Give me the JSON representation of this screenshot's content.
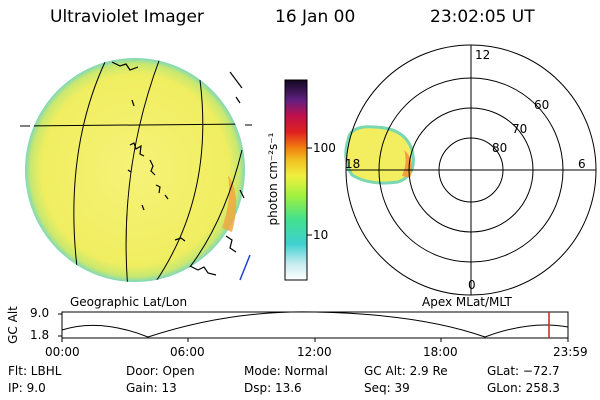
{
  "header": {
    "instrument": "Ultraviolet Imager",
    "date": "16 Jan 00",
    "time": "23:02:05 UT"
  },
  "colorbar": {
    "unit_label": "photon cm⁻²s⁻¹",
    "ticks": [
      "100",
      "10"
    ]
  },
  "geo_panel": {
    "caption": "Geographic Lat/Lon"
  },
  "polar_panel": {
    "caption": "Apex MLat/MLT",
    "mlt_labels": [
      "12",
      "18",
      "6",
      "0"
    ],
    "lat_labels": [
      "60",
      "70",
      "80"
    ]
  },
  "timeline": {
    "ylabel": "GC Alt",
    "y_ticks": [
      "9.0",
      "1.8"
    ],
    "x_ticks": [
      "00:00",
      "06:00",
      "12:00",
      "18:00",
      "23:59"
    ]
  },
  "info": {
    "filter": "Flt: LBHL",
    "ip": "IP:  9.0",
    "door": "Door: Open",
    "gain": "Gain: 13",
    "mode": "Mode: Normal",
    "dsp": "Dsp:     13.6",
    "gc_alt": "GC Alt: 2.9 Re",
    "seq": "Seq: 39",
    "glat": "GLat: −72.7",
    "glon": "GLon: 258.3"
  },
  "colors": {
    "disk_fill": "#f4f060",
    "disk_edge": "#7ad8b0",
    "dayglow": "#f0a030",
    "marker": "#d02020"
  }
}
